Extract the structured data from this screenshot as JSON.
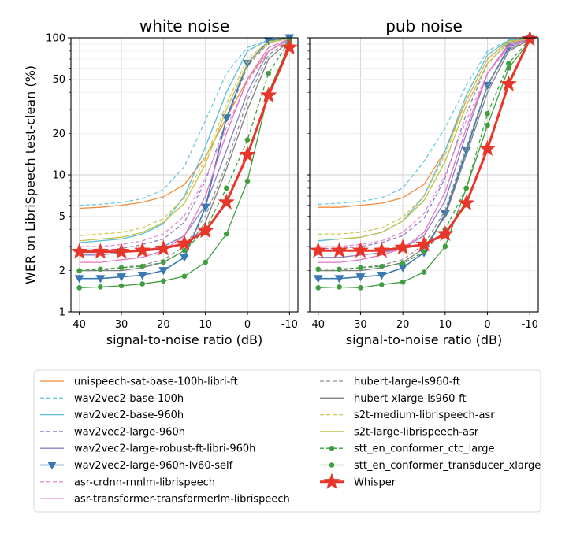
{
  "figure": {
    "ylabel": "WER on LibriSpeech test-clean (%)",
    "xlabel": "signal-to-noise ratio (dB)"
  },
  "chart_data": [
    {
      "type": "line",
      "title": "white noise",
      "xlabel": "signal-to-noise ratio (dB)",
      "ylabel": "WER on LibriSpeech test-clean (%)",
      "yscale": "log",
      "ylim": [
        1,
        100
      ],
      "xlim": [
        42,
        -12
      ],
      "xticks": [
        "40",
        "30",
        "20",
        "10",
        "0",
        "-10"
      ],
      "yticks": [
        "1",
        "2",
        "5",
        "10",
        "20",
        "50",
        "100"
      ],
      "x": [
        40,
        35,
        30,
        25,
        20,
        15,
        10,
        5,
        0,
        -5,
        -10
      ],
      "series": [
        {
          "name": "unispeech-sat-base-100h-libri-ft",
          "color": "#f08c3c",
          "dash": "solid",
          "marker": "none",
          "width": 1.3,
          "values": [
            5.7,
            5.8,
            6.0,
            6.3,
            6.9,
            8.5,
            13.5,
            26,
            50,
            80,
            97
          ]
        },
        {
          "name": "wav2vec2-base-100h",
          "color": "#6fc7dc",
          "dash": "dashed",
          "marker": "none",
          "width": 1.3,
          "values": [
            6.0,
            6.1,
            6.3,
            6.7,
            7.8,
            11.5,
            25,
            55,
            85,
            97,
            100
          ]
        },
        {
          "name": "wav2vec2-base-960h",
          "color": "#58bfd6",
          "dash": "solid",
          "marker": "none",
          "width": 1.3,
          "values": [
            3.2,
            3.3,
            3.4,
            3.7,
            4.4,
            7.0,
            16,
            40,
            80,
            97,
            100
          ]
        },
        {
          "name": "wav2vec2-large-960h",
          "color": "#8c7fc8",
          "dash": "dashed",
          "marker": "none",
          "width": 1.3,
          "values": [
            2.8,
            2.8,
            2.9,
            3.1,
            3.4,
            4.5,
            9.0,
            25,
            62,
            92,
            99
          ]
        },
        {
          "name": "wav2vec2-large-robust-ft-libri-960h",
          "color": "#8c7fc8",
          "dash": "solid",
          "marker": "none",
          "width": 1.3,
          "values": [
            2.6,
            2.6,
            2.7,
            2.8,
            3.0,
            3.6,
            6.0,
            15,
            40,
            80,
            98
          ]
        },
        {
          "name": "wav2vec2-large-960h-lv60-self",
          "color": "#3a78b4",
          "dash": "solid",
          "marker": "triangle",
          "width": 1.6,
          "values": [
            1.75,
            1.75,
            1.8,
            1.85,
            2.0,
            2.5,
            5.8,
            26,
            65,
            95,
            100
          ]
        },
        {
          "name": "asr-crdnn-rnnlm-librispeech",
          "color": "#e98ccc",
          "dash": "dashed",
          "marker": "none",
          "width": 1.3,
          "values": [
            3.0,
            3.0,
            3.1,
            3.3,
            3.7,
            5.0,
            9.5,
            22,
            48,
            80,
            97
          ]
        },
        {
          "name": "asr-transformer-transformerlm-librispeech",
          "color": "#e575c4",
          "dash": "solid",
          "marker": "none",
          "width": 1.3,
          "values": [
            2.3,
            2.3,
            2.4,
            2.5,
            2.8,
            3.6,
            7.0,
            20,
            50,
            85,
            98
          ]
        },
        {
          "name": "hubert-large-ls960-ft",
          "color": "#8f8f8f",
          "dash": "dashed",
          "marker": "none",
          "width": 1.3,
          "values": [
            2.0,
            2.0,
            2.1,
            2.2,
            2.4,
            3.0,
            5.0,
            12,
            35,
            75,
            96
          ]
        },
        {
          "name": "hubert-xlarge-ls960-ft",
          "color": "#7f7f7f",
          "dash": "solid",
          "marker": "none",
          "width": 1.3,
          "values": [
            2.0,
            2.0,
            2.0,
            2.1,
            2.3,
            2.8,
            4.5,
            11,
            30,
            70,
            95
          ]
        },
        {
          "name": "s2t-medium-librispeech-asr",
          "color": "#cfc85a",
          "dash": "dashed",
          "marker": "none",
          "width": 1.3,
          "values": [
            3.6,
            3.7,
            3.8,
            4.1,
            4.8,
            6.8,
            13,
            33,
            70,
            94,
            99
          ]
        },
        {
          "name": "s2t-large-librispeech-asr",
          "color": "#c3c24a",
          "dash": "solid",
          "marker": "none",
          "width": 1.3,
          "values": [
            3.3,
            3.4,
            3.5,
            3.8,
            4.5,
            6.2,
            12,
            30,
            65,
            92,
            99
          ]
        },
        {
          "name": "stt_en_conformer_ctc_large",
          "color": "#3f9e3f",
          "dash": "dashed",
          "marker": "circle",
          "width": 1.3,
          "values": [
            2.0,
            2.05,
            2.1,
            2.15,
            2.3,
            2.8,
            4.0,
            8.0,
            18,
            55,
            95
          ]
        },
        {
          "name": "stt_en_conformer_transducer_xlarge",
          "color": "#3f9e3f",
          "dash": "solid",
          "marker": "circle",
          "width": 1.3,
          "values": [
            1.5,
            1.52,
            1.55,
            1.6,
            1.68,
            1.82,
            2.3,
            3.7,
            9.0,
            40,
            90
          ]
        },
        {
          "name": "Whisper",
          "color": "#e8362a",
          "dash": "solid",
          "marker": "star",
          "width": 3.0,
          "values": [
            2.75,
            2.75,
            2.75,
            2.8,
            2.9,
            3.15,
            3.9,
            6.3,
            14,
            38,
            85
          ]
        }
      ]
    },
    {
      "type": "line",
      "title": "pub noise",
      "xlabel": "signal-to-noise ratio (dB)",
      "ylabel": "",
      "yscale": "log",
      "ylim": [
        1,
        100
      ],
      "xlim": [
        42,
        -12
      ],
      "xticks": [
        "40",
        "30",
        "20",
        "10",
        "0",
        "-10"
      ],
      "yticks": [],
      "x": [
        40,
        35,
        30,
        25,
        20,
        15,
        10,
        5,
        0,
        -5,
        -10
      ],
      "series": [
        {
          "name": "unispeech-sat-base-100h-libri-ft",
          "color": "#f08c3c",
          "dash": "solid",
          "marker": "none",
          "width": 1.3,
          "values": [
            5.8,
            5.8,
            6.0,
            6.2,
            6.8,
            8.5,
            15,
            35,
            70,
            95,
            100
          ]
        },
        {
          "name": "wav2vec2-base-100h",
          "color": "#6fc7dc",
          "dash": "dashed",
          "marker": "none",
          "width": 1.3,
          "values": [
            6.1,
            6.2,
            6.4,
            6.8,
            8.0,
            12.5,
            22,
            45,
            80,
            97,
            100
          ]
        },
        {
          "name": "wav2vec2-base-960h",
          "color": "#58bfd6",
          "dash": "solid",
          "marker": "none",
          "width": 1.3,
          "values": [
            3.3,
            3.4,
            3.5,
            3.8,
            4.6,
            7.0,
            15,
            38,
            75,
            96,
            100
          ]
        },
        {
          "name": "wav2vec2-large-960h",
          "color": "#8c7fc8",
          "dash": "dashed",
          "marker": "none",
          "width": 1.3,
          "values": [
            2.9,
            2.9,
            3.0,
            3.2,
            3.6,
            4.8,
            9.5,
            28,
            65,
            93,
            99
          ]
        },
        {
          "name": "wav2vec2-large-robust-ft-libri-960h",
          "color": "#8c7fc8",
          "dash": "solid",
          "marker": "none",
          "width": 1.3,
          "values": [
            2.5,
            2.5,
            2.6,
            2.7,
            2.9,
            3.6,
            6.5,
            20,
            55,
            90,
            99
          ]
        },
        {
          "name": "wav2vec2-large-960h-lv60-self",
          "color": "#3a78b4",
          "dash": "solid",
          "marker": "triangle",
          "width": 1.6,
          "values": [
            1.75,
            1.75,
            1.8,
            1.85,
            2.1,
            2.7,
            5.2,
            15,
            45,
            85,
            99
          ]
        },
        {
          "name": "asr-crdnn-rnnlm-librispeech",
          "color": "#e98ccc",
          "dash": "dashed",
          "marker": "none",
          "width": 1.3,
          "values": [
            3.0,
            3.0,
            3.1,
            3.3,
            3.8,
            5.2,
            10,
            25,
            55,
            85,
            98
          ]
        },
        {
          "name": "asr-transformer-transformerlm-librispeech",
          "color": "#e575c4",
          "dash": "solid",
          "marker": "none",
          "width": 1.3,
          "values": [
            2.3,
            2.3,
            2.4,
            2.6,
            2.9,
            3.8,
            7.5,
            22,
            55,
            88,
            99
          ]
        },
        {
          "name": "hubert-large-ls960-ft",
          "color": "#8f8f8f",
          "dash": "dashed",
          "marker": "none",
          "width": 1.3,
          "values": [
            2.0,
            2.0,
            2.1,
            2.2,
            2.4,
            3.1,
            5.5,
            16,
            45,
            82,
            98
          ]
        },
        {
          "name": "hubert-xlarge-ls960-ft",
          "color": "#7f7f7f",
          "dash": "solid",
          "marker": "none",
          "width": 1.3,
          "values": [
            2.0,
            2.0,
            2.0,
            2.1,
            2.3,
            2.9,
            5.0,
            14,
            40,
            80,
            97
          ]
        },
        {
          "name": "s2t-medium-librispeech-asr",
          "color": "#cfc85a",
          "dash": "dashed",
          "marker": "none",
          "width": 1.3,
          "values": [
            3.7,
            3.7,
            3.8,
            4.1,
            4.9,
            7.0,
            14,
            35,
            70,
            94,
            99
          ]
        },
        {
          "name": "s2t-large-librispeech-asr",
          "color": "#c3c24a",
          "dash": "solid",
          "marker": "none",
          "width": 1.3,
          "values": [
            3.4,
            3.4,
            3.5,
            3.8,
            4.6,
            6.5,
            12.5,
            32,
            65,
            92,
            99
          ]
        },
        {
          "name": "stt_en_conformer_ctc_large",
          "color": "#3f9e3f",
          "dash": "dashed",
          "marker": "circle",
          "width": 1.3,
          "values": [
            2.05,
            2.05,
            2.1,
            2.15,
            2.25,
            2.75,
            4.0,
            8.0,
            28,
            65,
            98
          ]
        },
        {
          "name": "stt_en_conformer_transducer_xlarge",
          "color": "#3f9e3f",
          "dash": "solid",
          "marker": "circle",
          "width": 1.3,
          "values": [
            1.5,
            1.52,
            1.5,
            1.58,
            1.65,
            1.95,
            3.0,
            8.0,
            23,
            60,
            95
          ]
        },
        {
          "name": "Whisper",
          "color": "#e8362a",
          "dash": "solid",
          "marker": "star",
          "width": 3.0,
          "values": [
            2.8,
            2.8,
            2.8,
            2.8,
            2.95,
            3.1,
            3.7,
            6.2,
            15.5,
            46,
            98
          ]
        }
      ]
    }
  ],
  "legend": {
    "columns": [
      [
        "unispeech-sat-base-100h-libri-ft",
        "wav2vec2-base-100h",
        "wav2vec2-base-960h",
        "wav2vec2-large-960h",
        "wav2vec2-large-robust-ft-libri-960h",
        "wav2vec2-large-960h-lv60-self",
        "asr-crdnn-rnnlm-librispeech",
        "asr-transformer-transformerlm-librispeech"
      ],
      [
        "hubert-large-ls960-ft",
        "hubert-xlarge-ls960-ft",
        "s2t-medium-librispeech-asr",
        "s2t-large-librispeech-asr",
        "stt_en_conformer_ctc_large",
        "stt_en_conformer_transducer_xlarge",
        "Whisper"
      ]
    ]
  }
}
